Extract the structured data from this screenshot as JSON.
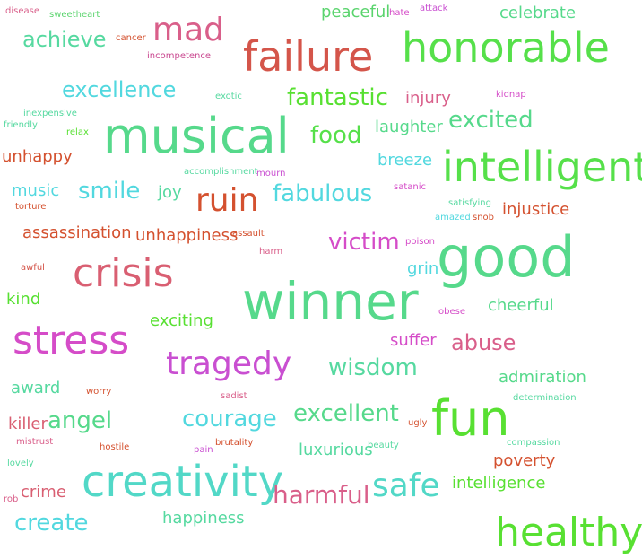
{
  "words": [
    {
      "text": "disease",
      "color": "#d95f8a"
    },
    {
      "text": "sweetheart",
      "color": "#5ad46d"
    },
    {
      "text": "peaceful",
      "color": "#5ad46d"
    },
    {
      "text": "hate",
      "color": "#d54cc8"
    },
    {
      "text": "attack",
      "color": "#c94fd1"
    },
    {
      "text": "celebrate",
      "color": "#56d98b"
    },
    {
      "text": "mad",
      "color": "#d95f8a"
    },
    {
      "text": "achieve",
      "color": "#56d9a0"
    },
    {
      "text": "cancer",
      "color": "#d4512f"
    },
    {
      "text": "incompetence",
      "color": "#c9478f"
    },
    {
      "text": "failure",
      "color": "#d4554a"
    },
    {
      "text": "honorable",
      "color": "#56e04a"
    },
    {
      "text": "excellence",
      "color": "#52d8df"
    },
    {
      "text": "exotic",
      "color": "#56d9a0"
    },
    {
      "text": "fantastic",
      "color": "#58e032"
    },
    {
      "text": "injury",
      "color": "#d95f8a"
    },
    {
      "text": "kidnap",
      "color": "#d54cc8"
    },
    {
      "text": "inexpensive",
      "color": "#56d9a0"
    },
    {
      "text": "friendly",
      "color": "#56d9a0"
    },
    {
      "text": "relax",
      "color": "#58e032"
    },
    {
      "text": "musical",
      "color": "#56d98b"
    },
    {
      "text": "food",
      "color": "#56e04a"
    },
    {
      "text": "laughter",
      "color": "#56d98b"
    },
    {
      "text": "excited",
      "color": "#56d98b"
    },
    {
      "text": "unhappy",
      "color": "#d4512f"
    },
    {
      "text": "breeze",
      "color": "#52d8df"
    },
    {
      "text": "intelligent",
      "color": "#56e04a"
    },
    {
      "text": "accomplishment",
      "color": "#56d9a0"
    },
    {
      "text": "mourn",
      "color": "#c94fd1"
    },
    {
      "text": "music",
      "color": "#52d8df"
    },
    {
      "text": "smile",
      "color": "#52d8df"
    },
    {
      "text": "joy",
      "color": "#56d9a0"
    },
    {
      "text": "ruin",
      "color": "#d4512f"
    },
    {
      "text": "fabulous",
      "color": "#52d8df"
    },
    {
      "text": "satanic",
      "color": "#d54cc8"
    },
    {
      "text": "torture",
      "color": "#d4512f"
    },
    {
      "text": "satisfying",
      "color": "#56d9a0"
    },
    {
      "text": "amazed",
      "color": "#52d8df"
    },
    {
      "text": "snob",
      "color": "#d4512f"
    },
    {
      "text": "injustice",
      "color": "#d4512f"
    },
    {
      "text": "assassination",
      "color": "#d4512f"
    },
    {
      "text": "unhappiness",
      "color": "#d4512f"
    },
    {
      "text": "assault",
      "color": "#d4512f"
    },
    {
      "text": "victim",
      "color": "#d54cc8"
    },
    {
      "text": "poison",
      "color": "#d54cc8"
    },
    {
      "text": "harm",
      "color": "#d95f8a"
    },
    {
      "text": "good",
      "color": "#56d98b"
    },
    {
      "text": "awful",
      "color": "#d4554a"
    },
    {
      "text": "crisis",
      "color": "#d95f72"
    },
    {
      "text": "grin",
      "color": "#52d8df"
    },
    {
      "text": "winner",
      "color": "#56d98b"
    },
    {
      "text": "kind",
      "color": "#58e032"
    },
    {
      "text": "obese",
      "color": "#d54cc8"
    },
    {
      "text": "cheerful",
      "color": "#56d98b"
    },
    {
      "text": "exciting",
      "color": "#58e032"
    },
    {
      "text": "stress",
      "color": "#d54cc8"
    },
    {
      "text": "suffer",
      "color": "#d54cc8"
    },
    {
      "text": "abuse",
      "color": "#d95f8a"
    },
    {
      "text": "tragedy",
      "color": "#c94fd1"
    },
    {
      "text": "wisdom",
      "color": "#56d9a0"
    },
    {
      "text": "admiration",
      "color": "#56d98b"
    },
    {
      "text": "award",
      "color": "#56d9a0"
    },
    {
      "text": "worry",
      "color": "#d4512f"
    },
    {
      "text": "sadist",
      "color": "#d95f8a"
    },
    {
      "text": "determination",
      "color": "#56d9a0"
    },
    {
      "text": "killer",
      "color": "#d95f72"
    },
    {
      "text": "angel",
      "color": "#56d98b"
    },
    {
      "text": "courage",
      "color": "#52d8df"
    },
    {
      "text": "excellent",
      "color": "#56d98b"
    },
    {
      "text": "fun",
      "color": "#58e032"
    },
    {
      "text": "ugly",
      "color": "#d4512f"
    },
    {
      "text": "mistrust",
      "color": "#d95f8a"
    },
    {
      "text": "hostile",
      "color": "#d4512f"
    },
    {
      "text": "brutality",
      "color": "#d4512f"
    },
    {
      "text": "pain",
      "color": "#c94fd1"
    },
    {
      "text": "luxurious",
      "color": "#56d9a0"
    },
    {
      "text": "beauty",
      "color": "#56d9a0"
    },
    {
      "text": "compassion",
      "color": "#56d9a0"
    },
    {
      "text": "lovely",
      "color": "#56d9a0"
    },
    {
      "text": "poverty",
      "color": "#d4512f"
    },
    {
      "text": "creativity",
      "color": "#52d8c7"
    },
    {
      "text": "safe",
      "color": "#52d8c7"
    },
    {
      "text": "intelligence",
      "color": "#58e032"
    },
    {
      "text": "rob",
      "color": "#d95f8a"
    },
    {
      "text": "crime",
      "color": "#d95f72"
    },
    {
      "text": "harmful",
      "color": "#d95f8a"
    },
    {
      "text": "create",
      "color": "#52d8df"
    },
    {
      "text": "happiness",
      "color": "#56d9a0"
    },
    {
      "text": "healthy",
      "color": "#58e032"
    }
  ]
}
